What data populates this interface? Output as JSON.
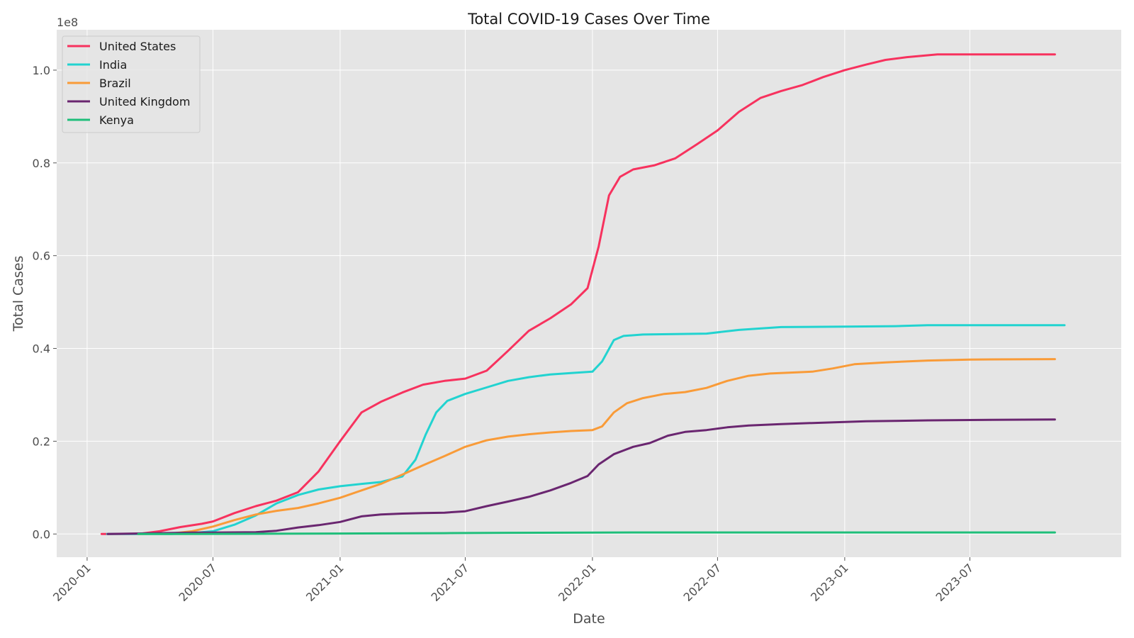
{
  "chart_data": {
    "type": "line",
    "title": "Total COVID-19 Cases Over Time",
    "xlabel": "Date",
    "ylabel": "Total Cases",
    "y_offset_label": "1e8",
    "xlim": [
      "2019-11-18",
      "2024-02-05"
    ],
    "ylim": [
      -0.05,
      1.087
    ],
    "y_scale_note": "values in units of 1e8",
    "x_ticks": [
      "2020-01",
      "2020-07",
      "2021-01",
      "2021-07",
      "2022-01",
      "2022-07",
      "2023-01",
      "2023-07"
    ],
    "y_ticks": [
      "0.0",
      "0.2",
      "0.4",
      "0.6",
      "0.8",
      "1.0"
    ],
    "grid": true,
    "legend_position": "upper-left",
    "series": [
      {
        "name": "United States",
        "color": "#f7325e",
        "points": [
          [
            "2020-01-22",
            0.0
          ],
          [
            "2020-03-15",
            0.0
          ],
          [
            "2020-04-15",
            0.006
          ],
          [
            "2020-05-15",
            0.015
          ],
          [
            "2020-06-15",
            0.022
          ],
          [
            "2020-07-01",
            0.027
          ],
          [
            "2020-08-01",
            0.045
          ],
          [
            "2020-09-01",
            0.06
          ],
          [
            "2020-10-01",
            0.072
          ],
          [
            "2020-11-01",
            0.09
          ],
          [
            "2020-12-01",
            0.135
          ],
          [
            "2021-01-01",
            0.2
          ],
          [
            "2021-02-01",
            0.262
          ],
          [
            "2021-03-01",
            0.285
          ],
          [
            "2021-04-01",
            0.305
          ],
          [
            "2021-05-01",
            0.322
          ],
          [
            "2021-06-01",
            0.33
          ],
          [
            "2021-07-01",
            0.335
          ],
          [
            "2021-08-01",
            0.352
          ],
          [
            "2021-09-01",
            0.395
          ],
          [
            "2021-10-01",
            0.438
          ],
          [
            "2021-11-01",
            0.465
          ],
          [
            "2021-12-01",
            0.495
          ],
          [
            "2021-12-25",
            0.53
          ],
          [
            "2022-01-10",
            0.62
          ],
          [
            "2022-01-25",
            0.73
          ],
          [
            "2022-02-10",
            0.77
          ],
          [
            "2022-03-01",
            0.786
          ],
          [
            "2022-04-01",
            0.795
          ],
          [
            "2022-05-01",
            0.81
          ],
          [
            "2022-06-01",
            0.84
          ],
          [
            "2022-07-01",
            0.87
          ],
          [
            "2022-08-01",
            0.91
          ],
          [
            "2022-09-01",
            0.94
          ],
          [
            "2022-10-01",
            0.955
          ],
          [
            "2022-11-01",
            0.968
          ],
          [
            "2022-12-01",
            0.985
          ],
          [
            "2023-01-01",
            1.0
          ],
          [
            "2023-02-01",
            1.012
          ],
          [
            "2023-03-01",
            1.022
          ],
          [
            "2023-04-01",
            1.028
          ],
          [
            "2023-05-15",
            1.034
          ],
          [
            "2023-07-01",
            1.034
          ],
          [
            "2023-11-01",
            1.034
          ]
        ]
      },
      {
        "name": "India",
        "color": "#22d3d0",
        "points": [
          [
            "2020-01-30",
            0.0
          ],
          [
            "2020-05-01",
            0.0
          ],
          [
            "2020-06-01",
            0.002
          ],
          [
            "2020-07-01",
            0.006
          ],
          [
            "2020-08-01",
            0.02
          ],
          [
            "2020-09-01",
            0.04
          ],
          [
            "2020-10-01",
            0.066
          ],
          [
            "2020-11-01",
            0.084
          ],
          [
            "2020-12-01",
            0.096
          ],
          [
            "2021-01-01",
            0.103
          ],
          [
            "2021-02-01",
            0.108
          ],
          [
            "2021-03-01",
            0.112
          ],
          [
            "2021-04-01",
            0.124
          ],
          [
            "2021-04-20",
            0.16
          ],
          [
            "2021-05-05",
            0.215
          ],
          [
            "2021-05-20",
            0.262
          ],
          [
            "2021-06-05",
            0.287
          ],
          [
            "2021-07-01",
            0.302
          ],
          [
            "2021-08-01",
            0.316
          ],
          [
            "2021-09-01",
            0.33
          ],
          [
            "2021-10-01",
            0.338
          ],
          [
            "2021-11-01",
            0.344
          ],
          [
            "2021-12-01",
            0.347
          ],
          [
            "2022-01-01",
            0.35
          ],
          [
            "2022-01-15",
            0.372
          ],
          [
            "2022-02-01",
            0.418
          ],
          [
            "2022-02-15",
            0.427
          ],
          [
            "2022-03-15",
            0.43
          ],
          [
            "2022-05-01",
            0.431
          ],
          [
            "2022-06-15",
            0.432
          ],
          [
            "2022-08-01",
            0.44
          ],
          [
            "2022-10-01",
            0.446
          ],
          [
            "2023-01-01",
            0.447
          ],
          [
            "2023-03-15",
            0.448
          ],
          [
            "2023-05-01",
            0.45
          ],
          [
            "2023-11-15",
            0.45
          ]
        ]
      },
      {
        "name": "Brazil",
        "color": "#f99b38",
        "points": [
          [
            "2020-03-15",
            0.0
          ],
          [
            "2020-05-01",
            0.001
          ],
          [
            "2020-06-01",
            0.006
          ],
          [
            "2020-07-01",
            0.016
          ],
          [
            "2020-08-01",
            0.03
          ],
          [
            "2020-09-01",
            0.042
          ],
          [
            "2020-10-01",
            0.05
          ],
          [
            "2020-11-01",
            0.056
          ],
          [
            "2020-12-01",
            0.066
          ],
          [
            "2021-01-01",
            0.078
          ],
          [
            "2021-02-01",
            0.094
          ],
          [
            "2021-03-01",
            0.108
          ],
          [
            "2021-04-01",
            0.128
          ],
          [
            "2021-05-01",
            0.148
          ],
          [
            "2021-06-01",
            0.168
          ],
          [
            "2021-07-01",
            0.188
          ],
          [
            "2021-08-01",
            0.202
          ],
          [
            "2021-09-01",
            0.21
          ],
          [
            "2021-10-01",
            0.215
          ],
          [
            "2021-11-01",
            0.219
          ],
          [
            "2021-12-01",
            0.222
          ],
          [
            "2022-01-01",
            0.224
          ],
          [
            "2022-01-15",
            0.232
          ],
          [
            "2022-02-01",
            0.262
          ],
          [
            "2022-02-20",
            0.282
          ],
          [
            "2022-03-15",
            0.293
          ],
          [
            "2022-04-15",
            0.302
          ],
          [
            "2022-05-15",
            0.306
          ],
          [
            "2022-06-15",
            0.315
          ],
          [
            "2022-07-15",
            0.33
          ],
          [
            "2022-08-15",
            0.341
          ],
          [
            "2022-09-15",
            0.346
          ],
          [
            "2022-10-15",
            0.348
          ],
          [
            "2022-11-15",
            0.35
          ],
          [
            "2022-12-15",
            0.357
          ],
          [
            "2023-01-15",
            0.366
          ],
          [
            "2023-03-01",
            0.37
          ],
          [
            "2023-05-01",
            0.374
          ],
          [
            "2023-07-01",
            0.376
          ],
          [
            "2023-11-01",
            0.377
          ]
        ]
      },
      {
        "name": "United Kingdom",
        "color": "#6a2670",
        "points": [
          [
            "2020-01-31",
            0.0
          ],
          [
            "2020-06-01",
            0.003
          ],
          [
            "2020-07-01",
            0.003
          ],
          [
            "2020-09-01",
            0.004
          ],
          [
            "2020-10-01",
            0.007
          ],
          [
            "2020-11-01",
            0.014
          ],
          [
            "2020-12-01",
            0.019
          ],
          [
            "2021-01-01",
            0.026
          ],
          [
            "2021-02-01",
            0.038
          ],
          [
            "2021-03-01",
            0.042
          ],
          [
            "2021-04-01",
            0.044
          ],
          [
            "2021-05-01",
            0.045
          ],
          [
            "2021-06-01",
            0.046
          ],
          [
            "2021-07-01",
            0.049
          ],
          [
            "2021-08-01",
            0.06
          ],
          [
            "2021-09-01",
            0.07
          ],
          [
            "2021-10-01",
            0.08
          ],
          [
            "2021-11-01",
            0.094
          ],
          [
            "2021-12-01",
            0.11
          ],
          [
            "2021-12-25",
            0.125
          ],
          [
            "2022-01-10",
            0.15
          ],
          [
            "2022-02-01",
            0.172
          ],
          [
            "2022-03-01",
            0.188
          ],
          [
            "2022-03-25",
            0.196
          ],
          [
            "2022-04-20",
            0.212
          ],
          [
            "2022-05-15",
            0.22
          ],
          [
            "2022-06-15",
            0.224
          ],
          [
            "2022-07-15",
            0.23
          ],
          [
            "2022-08-15",
            0.234
          ],
          [
            "2022-10-01",
            0.237
          ],
          [
            "2022-12-01",
            0.24
          ],
          [
            "2023-02-01",
            0.243
          ],
          [
            "2023-05-01",
            0.245
          ],
          [
            "2023-08-01",
            0.246
          ],
          [
            "2023-11-01",
            0.247
          ]
        ]
      },
      {
        "name": "Kenya",
        "color": "#1fbe7a",
        "points": [
          [
            "2020-03-15",
            0.0
          ],
          [
            "2020-09-01",
            0.0004
          ],
          [
            "2021-01-01",
            0.001
          ],
          [
            "2021-06-01",
            0.0018
          ],
          [
            "2021-09-01",
            0.0025
          ],
          [
            "2022-01-15",
            0.0032
          ],
          [
            "2022-06-01",
            0.0034
          ],
          [
            "2023-01-01",
            0.0034
          ],
          [
            "2023-11-01",
            0.0034
          ]
        ]
      }
    ]
  }
}
